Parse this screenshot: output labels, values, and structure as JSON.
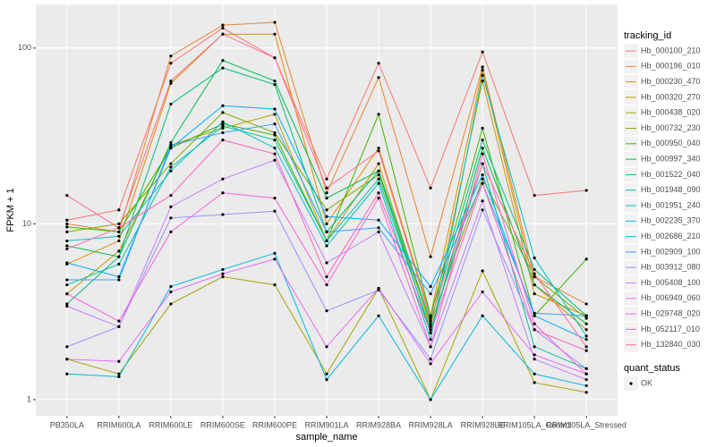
{
  "chart_data": {
    "type": "line",
    "x_label": "sample_name",
    "y_label": "FPKM + 1",
    "legend_title": "tracking_id",
    "point_legend": {
      "title": "quant_status",
      "label": "OK"
    },
    "log_scale": true,
    "grid": true,
    "point_color": "#000000",
    "ylim": [
      0.81,
      177
    ],
    "yticks": [
      1,
      10,
      100
    ],
    "categories": [
      "PB350LA",
      "RRIM600LA",
      "RRIM600LE",
      "RRIM600SE",
      "RRIM600PE",
      "RRIM901LA",
      "RRIM928BA",
      "RRIM928LA",
      "RRIM928LE",
      "RRIM105LA_Control",
      "RRIM105LA_Stressed"
    ],
    "series": [
      {
        "name": "Hb_000100_210",
        "color": "#F8766D",
        "values": [
          10.5,
          12,
          82,
          130,
          88,
          18,
          82,
          16,
          95,
          14.5,
          15.5
        ]
      },
      {
        "name": "Hb_000196_010",
        "color": "#EA8331",
        "values": [
          10,
          9,
          90,
          135,
          140,
          15,
          68,
          6.5,
          78,
          5,
          3.5
        ]
      },
      {
        "name": "Hb_000230_470",
        "color": "#D89000",
        "values": [
          5.9,
          8,
          63,
          120,
          120,
          10,
          27,
          3,
          75,
          4.5,
          2.5
        ]
      },
      {
        "name": "Hb_000320_270",
        "color": "#C09B00",
        "values": [
          4,
          7,
          28,
          35,
          42,
          8,
          22,
          2.6,
          65,
          4,
          3
        ]
      },
      {
        "name": "Hb_000438_020",
        "color": "#A3A500",
        "values": [
          1.7,
          1.4,
          3.5,
          5,
          4.5,
          1.4,
          4.3,
          1,
          5.4,
          1.25,
          1.1
        ]
      },
      {
        "name": "Hb_000732_230",
        "color": "#7CAE00",
        "values": [
          9,
          10,
          22,
          43,
          33,
          12,
          19,
          2.7,
          18,
          5,
          2.9
        ]
      },
      {
        "name": "Hb_000950_040",
        "color": "#39B600",
        "values": [
          9.6,
          9,
          27,
          37,
          32,
          8,
          42,
          3,
          35,
          3,
          6.3
        ]
      },
      {
        "name": "Hb_000997_340",
        "color": "#00BB4E",
        "values": [
          7.5,
          6.5,
          29,
          85,
          65,
          14,
          20,
          2.4,
          27,
          4.5,
          2.7
        ]
      },
      {
        "name": "Hb_001522_040",
        "color": "#00BF7D",
        "values": [
          3.5,
          6.5,
          48,
          77,
          62,
          9,
          20,
          2.8,
          30,
          5.5,
          3.0
        ]
      },
      {
        "name": "Hb_001948_090",
        "color": "#00C1A3",
        "values": [
          4.5,
          5.9,
          21,
          36,
          30,
          8,
          18,
          2.5,
          22,
          2,
          1.5
        ]
      },
      {
        "name": "Hb_001951_240",
        "color": "#00BFC4",
        "values": [
          8,
          8.5,
          20,
          38,
          27,
          7.5,
          17,
          2.2,
          70,
          6.4,
          2.3
        ]
      },
      {
        "name": "Hb_002235_370",
        "color": "#00BAE0",
        "values": [
          1.4,
          1.35,
          4.4,
          5.5,
          6.8,
          1.3,
          3,
          1,
          3,
          1.4,
          1.2
        ]
      },
      {
        "name": "Hb_002686_210",
        "color": "#00B0F6",
        "values": [
          6,
          5,
          27,
          47,
          45,
          11,
          10.5,
          4.4,
          19,
          3,
          2.2
        ]
      },
      {
        "name": "Hb_002909_100",
        "color": "#35A2FF",
        "values": [
          4.8,
          4.8,
          28,
          33,
          37,
          9,
          9.5,
          4,
          17,
          3.1,
          3.0
        ]
      },
      {
        "name": "Hb_003912_080",
        "color": "#9590FF",
        "values": [
          2,
          2.6,
          10.8,
          11.3,
          11.8,
          3.2,
          4.2,
          1.7,
          12,
          2.5,
          1.5
        ]
      },
      {
        "name": "Hb_005408_100",
        "color": "#C77CFF",
        "values": [
          3.4,
          2.6,
          12.5,
          18,
          23,
          6,
          9,
          2,
          13.5,
          1.7,
          1.3
        ]
      },
      {
        "name": "Hb_006949_060",
        "color": "#E76BF3",
        "values": [
          1.7,
          1.65,
          4.1,
          5.2,
          6.3,
          2,
          4.3,
          1.6,
          4.1,
          1.8,
          1.4
        ]
      },
      {
        "name": "Hb_029748_020",
        "color": "#FA62DB",
        "values": [
          4,
          2.8,
          9,
          15,
          14,
          4.5,
          14,
          2,
          25,
          2.7,
          1.4
        ]
      },
      {
        "name": "Hb_052117_010",
        "color": "#FF62BC",
        "values": [
          7.2,
          9.5,
          14.5,
          30,
          25,
          5,
          15,
          2.4,
          17,
          2.5,
          1.9
        ]
      },
      {
        "name": "Hb_132840_030",
        "color": "#FF6C91",
        "values": [
          14.5,
          9.5,
          65,
          120,
          88,
          16,
          26,
          2.9,
          22,
          5.2,
          2.0
        ]
      }
    ]
  }
}
